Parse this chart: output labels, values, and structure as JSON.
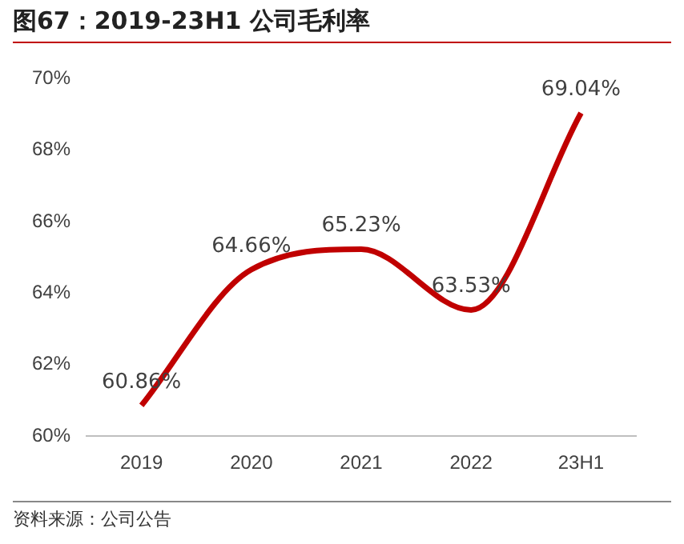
{
  "chart_data": {
    "type": "line",
    "title": "图67：2019-23H1 公司毛利率",
    "categories": [
      "2019",
      "2020",
      "2021",
      "2022",
      "23H1"
    ],
    "series": [
      {
        "color": "#c00000",
        "values": [
          60.86,
          64.66,
          65.23,
          63.53,
          69.04
        ],
        "value_labels": [
          "60.86%",
          "64.66%",
          "65.23%",
          "63.53%",
          "69.04%"
        ]
      }
    ],
    "ylim": [
      60,
      70
    ],
    "yticks": [
      {
        "value": 60,
        "label": "60%"
      },
      {
        "value": 62,
        "label": "62%"
      },
      {
        "value": 64,
        "label": "64%"
      },
      {
        "value": 66,
        "label": "66%"
      },
      {
        "value": 68,
        "label": "68%"
      },
      {
        "value": 70,
        "label": "70%"
      }
    ],
    "grid": false,
    "legend": false,
    "marker": "none",
    "line_style": "solid",
    "annotations": [
      "资料来源：公司公告"
    ]
  }
}
